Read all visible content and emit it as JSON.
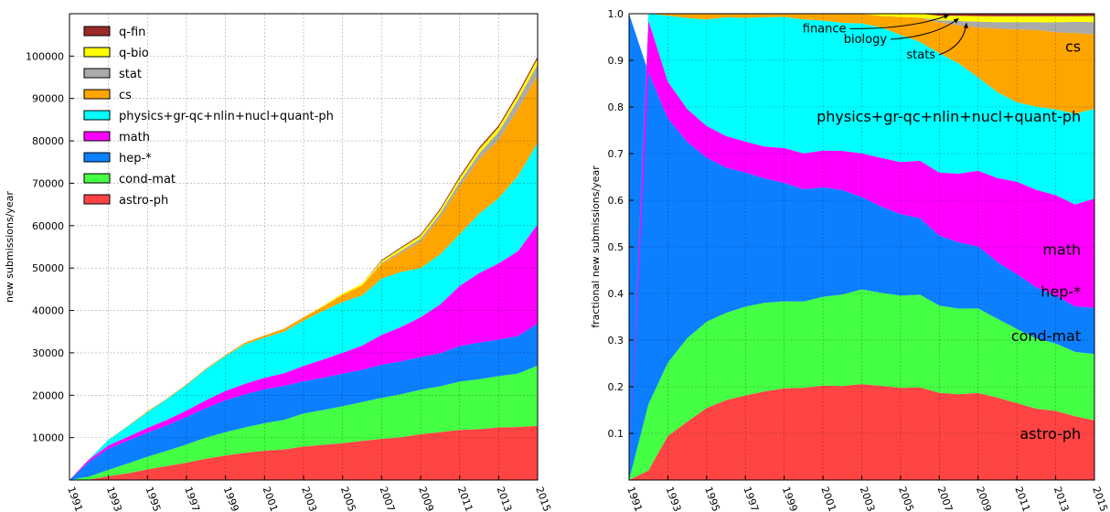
{
  "chart_data": [
    {
      "type": "area",
      "stacked": true,
      "ylabel": "new submissions/year",
      "xlim": [
        1991,
        2015
      ],
      "ylim": [
        0,
        110000
      ],
      "xticks": [
        "1991",
        "1993",
        "1995",
        "1997",
        "1999",
        "2001",
        "2003",
        "2005",
        "2007",
        "2009",
        "2011",
        "2013",
        "2015"
      ],
      "yticks": [
        "10000",
        "20000",
        "30000",
        "40000",
        "50000",
        "60000",
        "70000",
        "80000",
        "90000",
        "100000"
      ],
      "grid": true,
      "legend": "top-left",
      "x": [
        1991,
        1992,
        1993,
        1994,
        1995,
        1996,
        1997,
        1998,
        1999,
        2000,
        2001,
        2002,
        2003,
        2004,
        2005,
        2006,
        2007,
        2008,
        2009,
        2010,
        2011,
        2012,
        2013,
        2014,
        2015
      ],
      "series": [
        {
          "name": "astro-ph",
          "color": "#ff4444",
          "values": [
            0,
            100,
            900,
            1600,
            2500,
            3300,
            4100,
            5000,
            5800,
            6400,
            6900,
            7200,
            7900,
            8300,
            8700,
            9200,
            9700,
            10100,
            10800,
            11300,
            11800,
            12000,
            12400,
            12500,
            12800
          ]
        },
        {
          "name": "cond-mat",
          "color": "#44ff44",
          "values": [
            0,
            700,
            1500,
            2300,
            3000,
            3600,
            4300,
            5000,
            5500,
            6000,
            6500,
            7000,
            7800,
            8200,
            8700,
            9200,
            9700,
            10100,
            10500,
            10800,
            11400,
            11800,
            12100,
            12600,
            14200
          ]
        },
        {
          "name": "hep-*",
          "color": "#0c7fff",
          "values": [
            0,
            3500,
            5000,
            5400,
            5700,
            6000,
            6500,
            7000,
            7500,
            7800,
            8000,
            8000,
            7600,
            7600,
            7700,
            7600,
            7800,
            7800,
            7700,
            7800,
            8400,
            8600,
            8600,
            8900,
            9900
          ]
        },
        {
          "name": "math",
          "color": "#ff00ff",
          "values": [
            0,
            550,
            750,
            900,
            1100,
            1300,
            1500,
            1800,
            2200,
            2500,
            2700,
            3000,
            3600,
            4300,
            4900,
            5700,
            7000,
            8100,
            9400,
            11500,
            14200,
            16400,
            18000,
            20000,
            23400
          ]
        },
        {
          "name": "physics+gr-qc+nlin+nucl+quant-ph",
          "color": "#00ffff",
          "values": [
            0,
            70,
            1350,
            2500,
            3700,
            4900,
            6000,
            7300,
            8300,
            9300,
            9500,
            9800,
            10700,
            11500,
            12000,
            11800,
            13300,
            13000,
            11600,
            11800,
            12200,
            14000,
            15400,
            17800,
            19200
          ]
        },
        {
          "name": "cs",
          "color": "#ffa500",
          "values": [
            0,
            0,
            40,
            120,
            200,
            150,
            200,
            200,
            200,
            400,
            500,
            700,
            800,
            1000,
            1700,
            2400,
            3400,
            4500,
            6200,
            8700,
            11200,
            12900,
            13800,
            15800,
            16000
          ]
        },
        {
          "name": "stat",
          "color": "#aaaaaa",
          "values": [
            0,
            0,
            0,
            0,
            0,
            0,
            0,
            0,
            0,
            0,
            0,
            0,
            0,
            0,
            0,
            0,
            250,
            500,
            700,
            900,
            1100,
            1300,
            1800,
            2200,
            2600
          ]
        },
        {
          "name": "q-bio",
          "color": "#ffff00",
          "values": [
            0,
            0,
            0,
            0,
            0,
            0,
            0,
            0,
            0,
            0,
            0,
            0,
            0,
            200,
            300,
            400,
            500,
            600,
            700,
            800,
            900,
            1000,
            1100,
            1100,
            1300
          ]
        },
        {
          "name": "q-fin",
          "color": "#9b2a2a",
          "values": [
            0,
            0,
            0,
            0,
            0,
            0,
            0,
            0,
            0,
            0,
            0,
            0,
            0,
            0,
            0,
            0,
            220,
            250,
            300,
            350,
            400,
            420,
            450,
            480,
            500
          ]
        }
      ]
    },
    {
      "type": "area",
      "stacked": true,
      "normalized": true,
      "ylabel": "fractional new submissions/year",
      "xlim": [
        1991,
        2015
      ],
      "ylim": [
        0,
        1.0
      ],
      "xticks": [
        "1991",
        "1993",
        "1995",
        "1997",
        "1999",
        "2001",
        "2003",
        "2005",
        "2007",
        "2009",
        "2011",
        "2013",
        "2015"
      ],
      "yticks": [
        "0.1",
        "0.2",
        "0.3",
        "0.4",
        "0.5",
        "0.6",
        "0.7",
        "0.8",
        "0.9",
        "1.0"
      ],
      "grid": true,
      "labels": [
        {
          "text": "astro-ph",
          "x": 2014.3,
          "y": 0.1
        },
        {
          "text": "cond-mat",
          "x": 2014.3,
          "y": 0.31
        },
        {
          "text": "hep-*",
          "x": 2014.3,
          "y": 0.405
        },
        {
          "text": "math",
          "x": 2014.3,
          "y": 0.495
        },
        {
          "text": "physics+gr-qc+nlin+nucl+quant-ph",
          "x": 2014.3,
          "y": 0.78
        },
        {
          "text": "cs",
          "x": 2014.3,
          "y": 0.93
        }
      ],
      "annotations": [
        {
          "text": "finance",
          "x": 2002.2,
          "y": 0.968,
          "target": [
            2007.5,
            0.997
          ]
        },
        {
          "text": "biology",
          "x": 2004.3,
          "y": 0.945,
          "target": [
            2008.0,
            0.99
          ]
        },
        {
          "text": "stats",
          "x": 2006.8,
          "y": 0.912,
          "target": [
            2008.4,
            0.98
          ]
        }
      ]
    }
  ]
}
